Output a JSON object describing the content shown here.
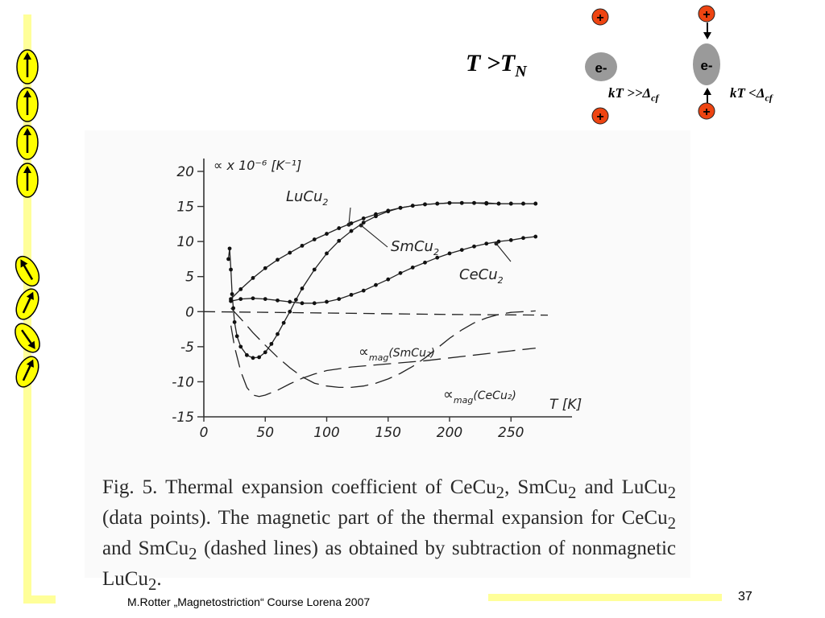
{
  "slide": {
    "title_main": "T >T",
    "title_sub": "N",
    "ion_label_1": "e-",
    "ion_label_2": "e-",
    "charge_label": "+",
    "cf_label_1_main": "kT >>Δ",
    "cf_label_1_sub": "cf",
    "cf_label_2_main": "kT <Δ",
    "cf_label_2_sub": "cf",
    "footer": "M.Rotter „Magnetostriction“ Course Lorena 2007",
    "page_number": "37"
  },
  "colors": {
    "accent_bar": "#ffff99",
    "spin_fill": "#ffff00",
    "charge": "#ee4411",
    "ion": "#9a9a9a"
  },
  "caption": {
    "p1": "Fig. 5. Thermal expansion coefficient of CeCu",
    "s1": "2",
    "p2": ", SmCu",
    "s2": "2",
    "p3": " and LuCu",
    "s3": "2",
    "p4": " (data points). The magnetic part of the thermal expansion for CeCu",
    "s4": "2",
    "p5": " and SmCu",
    "s5": "2",
    "p6": " (dashed lines) as obtained by subtraction of nonmagnetic LuCu",
    "s6": "2",
    "p7": "."
  },
  "chart_data": {
    "type": "line",
    "ylabel": "∝ x 10⁻⁶ [K⁻¹]",
    "xlabel": "T [K]",
    "xlim": [
      0,
      280
    ],
    "ylim": [
      -15,
      20
    ],
    "x_ticks": [
      "0",
      "50",
      "100",
      "150",
      "200",
      "250"
    ],
    "y_ticks": [
      "20",
      "15",
      "10",
      "5",
      "0",
      "-5",
      "-10",
      "-15"
    ],
    "grid": false,
    "series": [
      {
        "name": "LuCu2",
        "style": "points",
        "x": [
          22,
          30,
          40,
          50,
          60,
          70,
          80,
          90,
          100,
          110,
          120,
          130,
          140,
          150,
          160,
          170,
          180,
          190,
          200,
          210,
          220,
          230,
          240,
          250,
          260,
          270
        ],
        "y": [
          1.8,
          3.2,
          4.8,
          6.2,
          7.4,
          8.4,
          9.4,
          10.3,
          11.1,
          11.9,
          12.6,
          13.3,
          13.9,
          14.4,
          14.8,
          15.1,
          15.3,
          15.4,
          15.5,
          15.5,
          15.5,
          15.4,
          15.4,
          15.4,
          15.4,
          15.4
        ]
      },
      {
        "name": "SmCu2",
        "style": "points",
        "x": [
          20,
          21,
          22,
          23,
          24,
          25,
          27,
          30,
          35,
          40,
          45,
          50,
          55,
          60,
          65,
          70,
          75,
          80,
          90,
          100,
          110,
          120,
          130,
          140,
          150,
          160,
          170,
          180,
          190,
          200,
          210,
          220,
          230,
          240,
          250,
          260,
          270
        ],
        "y": [
          7.5,
          9.0,
          6.0,
          2.5,
          0.5,
          -1.5,
          -3.5,
          -5.0,
          -6.2,
          -6.6,
          -6.5,
          -5.8,
          -4.6,
          -3.2,
          -1.6,
          0.0,
          1.7,
          3.3,
          6.0,
          8.3,
          10.1,
          11.5,
          12.7,
          13.6,
          14.3,
          14.8,
          15.1,
          15.3,
          15.4,
          15.5,
          15.5,
          15.5,
          15.5,
          15.4,
          15.4,
          15.4,
          15.4
        ]
      },
      {
        "name": "CeCu2",
        "style": "points",
        "x": [
          22,
          30,
          40,
          50,
          60,
          70,
          80,
          90,
          100,
          110,
          120,
          130,
          140,
          150,
          160,
          170,
          180,
          190,
          200,
          210,
          220,
          230,
          240,
          250,
          260,
          270
        ],
        "y": [
          1.5,
          1.8,
          1.9,
          1.8,
          1.6,
          1.4,
          1.2,
          1.2,
          1.4,
          1.8,
          2.4,
          3.0,
          3.8,
          4.6,
          5.5,
          6.3,
          7.0,
          7.7,
          8.3,
          8.8,
          9.3,
          9.7,
          10.0,
          10.2,
          10.5,
          10.7
        ]
      },
      {
        "name": "αmag(SmCu2)",
        "style": "dashed",
        "x": [
          22,
          30,
          40,
          50,
          60,
          70,
          80,
          90,
          100,
          110,
          120,
          130,
          140,
          150,
          160,
          170,
          180,
          190,
          200,
          210,
          220,
          230,
          240,
          250,
          260,
          270
        ],
        "y": [
          0.5,
          -1.0,
          -3.0,
          -4.8,
          -6.5,
          -8.0,
          -9.3,
          -10.2,
          -10.6,
          -10.8,
          -10.8,
          -10.6,
          -10.2,
          -9.6,
          -8.8,
          -7.8,
          -6.6,
          -5.2,
          -3.8,
          -2.6,
          -1.6,
          -0.9,
          -0.4,
          -0.1,
          0.0,
          0.1
        ]
      },
      {
        "name": "αmag(CeCu2)",
        "style": "dashed",
        "x": [
          22,
          25,
          30,
          35,
          40,
          45,
          50,
          60,
          70,
          80,
          90,
          100,
          120,
          140,
          160,
          180,
          200,
          220,
          240,
          260,
          270
        ],
        "y": [
          -2.0,
          -5.0,
          -8.5,
          -10.8,
          -11.9,
          -12.1,
          -11.9,
          -11.2,
          -10.3,
          -9.5,
          -8.9,
          -8.4,
          -7.9,
          -7.6,
          -7.3,
          -7.0,
          -6.6,
          -6.2,
          -5.8,
          -5.4,
          -5.2
        ]
      },
      {
        "name": "",
        "style": "dashed-baseline",
        "x": [
          0,
          100,
          200,
          280
        ],
        "y": [
          0.0,
          -0.2,
          -0.4,
          -0.5
        ]
      }
    ],
    "annotations": [
      {
        "text_main": "LuCu",
        "text_sub": "2"
      },
      {
        "text_main": "SmCu",
        "text_sub": "2"
      },
      {
        "text_main": "CeCu",
        "text_sub": "2"
      },
      {
        "text_main": "∝",
        "text_sub": "mag",
        "text_after": "(SmCu₂)"
      },
      {
        "text_main": "∝",
        "text_sub": "mag",
        "text_after": "(CeCu₂)"
      }
    ]
  }
}
